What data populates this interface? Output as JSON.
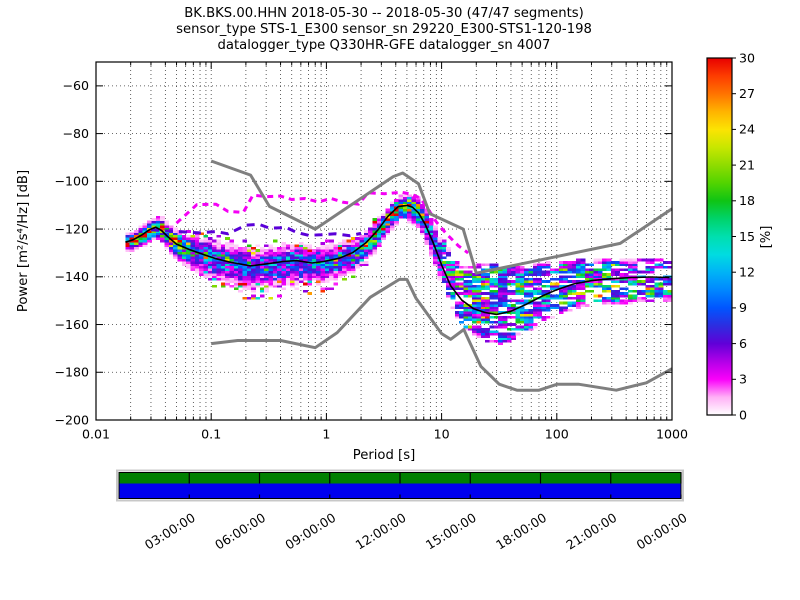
{
  "header": {
    "line1": "BK.BKS.00.HHN   2018-05-30 -- 2018-05-30  (47/47 segments)",
    "line2": "sensor_type STS-1_E300 sensor_sn 29220_E300-STS1-120-198",
    "line3": "datalogger_type Q330HR-GFE datalogger_sn 4007"
  },
  "chart_data": {
    "type": "heatmap",
    "title": "BK.BKS.00.HHN 2018-05-30 -- 2018-05-30 (47/47 segments)",
    "xlabel": "Period [s]",
    "ylabel": "Power [m²/s⁴/Hz] [dB]",
    "x_scale": "log",
    "xlim": [
      0.01,
      1000
    ],
    "ylim": [
      -200,
      -50
    ],
    "x_tick_labels": [
      "0.01",
      "0.1",
      "1",
      "10",
      "100",
      "1000"
    ],
    "y_ticks": [
      -200,
      -180,
      -160,
      -140,
      -120,
      -100,
      -80,
      -60
    ],
    "grid": true,
    "colorbar": {
      "label": "[%]",
      "min": 0,
      "max": 30,
      "ticks": [
        0,
        3,
        6,
        9,
        12,
        15,
        18,
        21,
        24,
        27,
        30
      ],
      "stops": [
        [
          0,
          "#ffffff"
        ],
        [
          1.5,
          "#ffb0f6"
        ],
        [
          3,
          "#fa00fa"
        ],
        [
          4.5,
          "#b100e8"
        ],
        [
          6,
          "#6000d8"
        ],
        [
          7.5,
          "#2d2de0"
        ],
        [
          9,
          "#0055ff"
        ],
        [
          10.5,
          "#0087ff"
        ],
        [
          12,
          "#00b3f6"
        ],
        [
          13.5,
          "#00dce0"
        ],
        [
          15,
          "#00dfae"
        ],
        [
          16.5,
          "#00d36a"
        ],
        [
          18,
          "#0fc414"
        ],
        [
          19.5,
          "#52d400"
        ],
        [
          21,
          "#8fdc00"
        ],
        [
          22.5,
          "#c8e700"
        ],
        [
          24,
          "#fce303"
        ],
        [
          25.5,
          "#ffb300"
        ],
        [
          27,
          "#ff7300"
        ],
        [
          28.5,
          "#fd3c00"
        ],
        [
          30,
          "#e80000"
        ]
      ]
    },
    "noise_models": {
      "color": "#7f7f7f",
      "nhnm": [
        [
          0.1,
          -91.5
        ],
        [
          0.22,
          -97.4
        ],
        [
          0.32,
          -110.5
        ],
        [
          0.8,
          -120
        ],
        [
          3.8,
          -98
        ],
        [
          4.6,
          -96.5
        ],
        [
          6.3,
          -101
        ],
        [
          7.9,
          -113.5
        ],
        [
          15.4,
          -120
        ],
        [
          20,
          -138.5
        ],
        [
          354.8,
          -126
        ],
        [
          1000,
          -111.5
        ]
      ],
      "nlnm": [
        [
          0.1,
          -168
        ],
        [
          0.17,
          -166.7
        ],
        [
          0.4,
          -166.7
        ],
        [
          0.8,
          -169.7
        ],
        [
          1.24,
          -163.4
        ],
        [
          2.4,
          -148.6
        ],
        [
          4.3,
          -141.1
        ],
        [
          5,
          -141.1
        ],
        [
          6,
          -149
        ],
        [
          10,
          -163.8
        ],
        [
          12,
          -166.2
        ],
        [
          15.6,
          -162.1
        ],
        [
          21.9,
          -177.5
        ],
        [
          31.6,
          -185
        ],
        [
          45,
          -187.5
        ],
        [
          70,
          -187.5
        ],
        [
          101,
          -185
        ],
        [
          154,
          -185
        ],
        [
          328,
          -187.5
        ],
        [
          600,
          -184.4
        ],
        [
          1000,
          -178.5
        ]
      ]
    },
    "mode_curve": {
      "color": "#000000",
      "points": [
        [
          0.018,
          -125.5
        ],
        [
          0.021,
          -124.5
        ],
        [
          0.025,
          -122.5
        ],
        [
          0.029,
          -120.3
        ],
        [
          0.033,
          -119.2
        ],
        [
          0.037,
          -120.6
        ],
        [
          0.042,
          -123.2
        ],
        [
          0.05,
          -126.3
        ],
        [
          0.065,
          -128.6
        ],
        [
          0.085,
          -130.6
        ],
        [
          0.11,
          -132.4
        ],
        [
          0.15,
          -134
        ],
        [
          0.22,
          -135.4
        ],
        [
          0.3,
          -134.6
        ],
        [
          0.42,
          -133.6
        ],
        [
          0.55,
          -133.2
        ],
        [
          0.75,
          -134.2
        ],
        [
          0.95,
          -133.6
        ],
        [
          1.3,
          -132.2
        ],
        [
          1.7,
          -129.8
        ],
        [
          2.2,
          -125.8
        ],
        [
          2.8,
          -120.4
        ],
        [
          3.4,
          -114.8
        ],
        [
          4.2,
          -110.6
        ],
        [
          5.0,
          -110.1
        ],
        [
          5.6,
          -110.9
        ],
        [
          6.3,
          -113.2
        ],
        [
          7.2,
          -118
        ],
        [
          8.5,
          -126
        ],
        [
          10,
          -135
        ],
        [
          12,
          -143.8
        ],
        [
          15,
          -149.8
        ],
        [
          19,
          -153.4
        ],
        [
          24,
          -155
        ],
        [
          30,
          -155.8
        ],
        [
          40,
          -154.4
        ],
        [
          55,
          -151.4
        ],
        [
          75,
          -148
        ],
        [
          100,
          -145.4
        ],
        [
          140,
          -143
        ],
        [
          200,
          -141.6
        ],
        [
          300,
          -140.8
        ],
        [
          450,
          -140.3
        ],
        [
          650,
          -140.1
        ],
        [
          950,
          -140.3
        ]
      ]
    },
    "outlier_lines": [
      {
        "name": "magenta-outlier",
        "color": "#f400f4",
        "dash": "6 5",
        "points": [
          [
            0.05,
            -117.5
          ],
          [
            0.075,
            -109.8
          ],
          [
            0.11,
            -109.6
          ],
          [
            0.14,
            -112.6
          ],
          [
            0.19,
            -113
          ],
          [
            0.23,
            -105.8
          ],
          [
            0.3,
            -106.4
          ],
          [
            0.4,
            -106.2
          ],
          [
            0.5,
            -107.6
          ],
          [
            0.65,
            -107.2
          ],
          [
            0.85,
            -108.6
          ],
          [
            1.1,
            -107.2
          ],
          [
            1.4,
            -108.8
          ],
          [
            1.9,
            -109.6
          ],
          [
            2.3,
            -104.8
          ],
          [
            3.2,
            -105.2
          ],
          [
            4.5,
            -104.6
          ],
          [
            5.5,
            -105.4
          ],
          [
            6.5,
            -107
          ],
          [
            7.5,
            -111
          ],
          [
            9,
            -117
          ],
          [
            11,
            -122
          ],
          [
            14,
            -127
          ],
          [
            17,
            -130
          ]
        ]
      },
      {
        "name": "purple-outlier",
        "color": "#5a00d8",
        "dash": "8 6",
        "points": [
          [
            0.03,
            -120.3
          ],
          [
            0.05,
            -121
          ],
          [
            0.08,
            -121.6
          ],
          [
            0.11,
            -121
          ],
          [
            0.14,
            -122
          ],
          [
            0.2,
            -118.4
          ],
          [
            0.26,
            -118
          ],
          [
            0.32,
            -119.6
          ],
          [
            0.45,
            -119.4
          ],
          [
            0.55,
            -121.4
          ],
          [
            0.7,
            -122.6
          ],
          [
            0.9,
            -122.4
          ],
          [
            1.2,
            -122
          ],
          [
            1.6,
            -122.8
          ],
          [
            2.0,
            -121.8
          ]
        ]
      }
    ],
    "histogram_model": {
      "min_period": 0.018,
      "max_period": 1000,
      "period_step_octaves": 0.125,
      "db_bin_width": 1,
      "threshold_percent": 0.8,
      "gauss_params": [
        [
          0.018,
          28,
          1.4,
          1.6
        ],
        [
          0.03,
          28,
          1.6,
          1.8
        ],
        [
          0.045,
          20,
          2.2,
          2.8
        ],
        [
          0.07,
          11,
          2.8,
          4.0
        ],
        [
          0.12,
          9,
          3.2,
          4.6
        ],
        [
          0.25,
          8,
          3.4,
          5.0
        ],
        [
          0.5,
          8.5,
          3.2,
          4.8
        ],
        [
          0.9,
          9,
          3.0,
          4.2
        ],
        [
          1.5,
          11,
          2.6,
          3.6
        ],
        [
          2.5,
          16,
          2.2,
          2.8
        ],
        [
          4.0,
          28,
          1.8,
          2.2
        ],
        [
          5.5,
          26,
          1.9,
          2.6
        ],
        [
          7.5,
          13,
          2.6,
          4.0
        ],
        [
          9.5,
          8,
          3.4,
          5.0
        ]
      ],
      "cloud_start_period": 9.5,
      "cloud_params": [
        [
          9.5,
          8,
          11,
          7
        ],
        [
          14,
          9,
          13,
          12
        ],
        [
          20,
          9,
          20,
          12
        ],
        [
          30,
          9,
          22,
          13
        ],
        [
          50,
          9,
          17,
          11
        ],
        [
          100,
          9,
          12,
          10
        ],
        [
          200,
          9,
          9.5,
          10
        ],
        [
          400,
          9,
          8,
          10.5
        ],
        [
          950,
          9,
          8,
          10.5
        ]
      ],
      "seed": 7
    },
    "coverage": {
      "green_color": "#008000",
      "blue_color": "#0000ee",
      "hours_total": 24,
      "tick_every_hours": 3,
      "time_labels": [
        "03:00:00",
        "06:00:00",
        "09:00:00",
        "12:00:00",
        "15:00:00",
        "18:00:00",
        "21:00:00",
        "00:00:00"
      ]
    }
  }
}
